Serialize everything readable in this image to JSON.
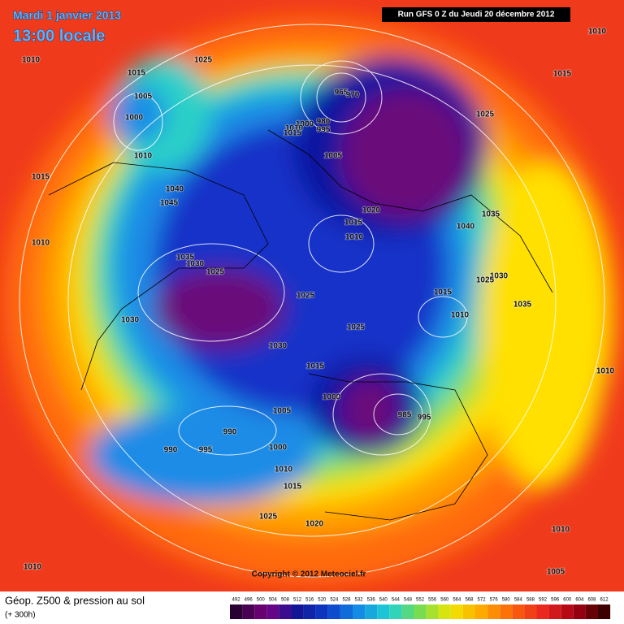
{
  "header": {
    "date": "Mardi 1 janvier 2013",
    "time": "13:00 locale",
    "run": "Run GFS 0 Z du Jeudi 20 décembre 2012"
  },
  "copyright": "Copyright © 2012 Meteociel.fr",
  "footer": {
    "title": "Géop. Z500 & pression au sol",
    "subtitle": "(+ 300h)"
  },
  "legend": {
    "values": [
      "492",
      "496",
      "500",
      "504",
      "508",
      "512",
      "516",
      "520",
      "524",
      "528",
      "532",
      "536",
      "540",
      "544",
      "548",
      "552",
      "556",
      "560",
      "564",
      "568",
      "572",
      "576",
      "580",
      "584",
      "588",
      "592",
      "596",
      "600",
      "604",
      "608",
      "612"
    ]
  },
  "isobar_labels": [
    "1010",
    "1025",
    "1015",
    "1005",
    "1000",
    "1010",
    "1015",
    "1040",
    "1045",
    "1010",
    "1035",
    "1030",
    "1025",
    "1030",
    "1025",
    "1025",
    "1030",
    "1015",
    "1000",
    "1005",
    "985",
    "995",
    "990",
    "990",
    "995",
    "1000",
    "1010",
    "1015",
    "1025",
    "1020",
    "1010",
    "1005",
    "1010",
    "1010",
    "1035",
    "1030",
    "1025",
    "1015",
    "1010",
    "1040",
    "1035",
    "1025",
    "1015",
    "1010",
    "1015",
    "1020",
    "1010",
    "1005",
    "965",
    "970",
    "980",
    "995",
    "1000",
    "1010",
    "1015"
  ]
}
